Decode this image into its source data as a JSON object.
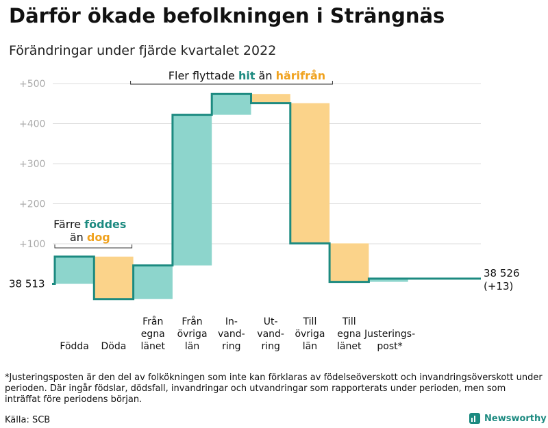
{
  "header": {
    "title": "Därför ökade befolkningen i Strängnäs",
    "subtitle": "Förändringar under fjärde kvartalet 2022"
  },
  "chart_data": {
    "type": "waterfall",
    "base_value": 38513,
    "start_label": "38 513",
    "end_label_line1": "38 526",
    "end_label_line2": "(+13)",
    "yticks": [
      "+100",
      "+200",
      "+300",
      "+400",
      "+500"
    ],
    "ytick_values": [
      100,
      200,
      300,
      400,
      500
    ],
    "ylim": [
      -45,
      540
    ],
    "steps": [
      {
        "label_lines": [
          "Födda"
        ],
        "change": 68,
        "kind": "increase"
      },
      {
        "label_lines": [
          "Döda"
        ],
        "change": -106,
        "kind": "decrease"
      },
      {
        "label_lines": [
          "Från",
          "egna",
          "länet"
        ],
        "change": 84,
        "kind": "increase"
      },
      {
        "label_lines": [
          "Från",
          "övriga",
          "län"
        ],
        "change": 376,
        "kind": "increase"
      },
      {
        "label_lines": [
          "In-",
          "vand-",
          "ring"
        ],
        "change": 52,
        "kind": "increase"
      },
      {
        "label_lines": [
          "Ut-",
          "vand-",
          "ring"
        ],
        "change": -23,
        "kind": "decrease"
      },
      {
        "label_lines": [
          "Till",
          "övriga",
          "län"
        ],
        "change": -350,
        "kind": "decrease"
      },
      {
        "label_lines": [
          "Till",
          "egna",
          "länet"
        ],
        "change": -96,
        "kind": "decrease"
      },
      {
        "label_lines": [
          "Justerings-",
          "post*"
        ],
        "change": 8,
        "kind": "increase"
      }
    ],
    "annotation_left": {
      "line1_prefix": "Färre ",
      "line1_highlight": "föddes",
      "line2_prefix": "än ",
      "line2_highlight": "dog"
    },
    "annotation_top": {
      "prefix": "Fler flyttade ",
      "highlight1": "hit",
      "middle": " än ",
      "highlight2": "härifrån"
    },
    "colors": {
      "increase_fill": "#8dd5cc",
      "decrease_fill": "#fbd38a",
      "line": "#1c8a80",
      "highlight_teal": "#1c8a80",
      "highlight_orange": "#f0a21e",
      "grid": "#dddddd",
      "tick_text": "#aaaaaa"
    }
  },
  "footnote": "*Justeringsposten är den del av folkökningen som inte kan förklaras av födelseöverskott och invandringsöverskott under perioden. Där ingår födslar, dödsfall, invandringar och utvandringar som rapporterats under perioden, men som inträffat före periodens början.",
  "source": "Källa: SCB",
  "brand": "Newsworthy"
}
